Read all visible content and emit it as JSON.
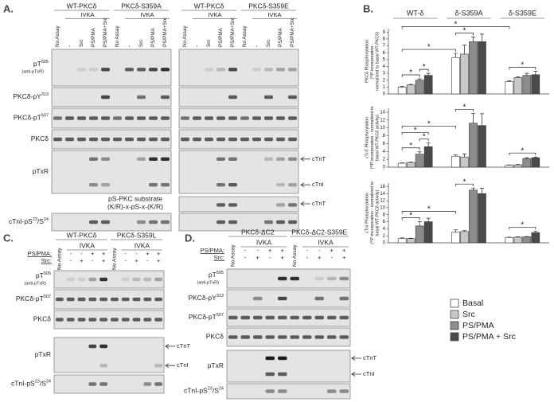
{
  "panel_a": {
    "label": "A.",
    "groups": [
      {
        "name": "WT-PKCδ",
        "assay": "IVKA"
      },
      {
        "name": "PKCδ-S359A",
        "assay": "IVKA"
      },
      {
        "name": "WT-PKCδ",
        "assay": "IVKA"
      },
      {
        "name": "PKCδ-S359E",
        "assay": "IVKA"
      }
    ],
    "lanes": [
      "No Assay",
      "-",
      "Src",
      "PS/PMA",
      "PS/PMA+Src"
    ],
    "rows": [
      {
        "label": [
          {
            "text": "pT"
          },
          {
            "sup": "505"
          }
        ],
        "note": "(anti-pTxR)"
      },
      {
        "label": [
          {
            "text": "PKCδ-pY"
          },
          {
            "sup": "313"
          }
        ]
      },
      {
        "label": [
          {
            "text": "PKCδ-pT"
          },
          {
            "sup": "507"
          }
        ]
      },
      {
        "label": [
          {
            "text": "PKCδ"
          }
        ]
      },
      {
        "label": [
          {
            "text": "pTxR"
          }
        ]
      },
      {
        "label": [
          {
            "text": "cTnI-pS"
          },
          {
            "sup": "23"
          },
          {
            "text": "/S"
          },
          {
            "sup": "24"
          }
        ]
      }
    ],
    "arrows": [
      "cTnT",
      "cTnI",
      "cTnT"
    ],
    "substrate_note": [
      "pS-PKC substrate",
      "(K/R)-x-pS-x-(K/R)"
    ]
  },
  "panel_c": {
    "label": "C.",
    "groups": [
      {
        "name": "WT-PKCδ",
        "assay": "IVKA"
      },
      {
        "name": "PKCδ-S359L",
        "assay": "IVKA"
      }
    ],
    "first_lane": "No Assay",
    "conditions": [
      {
        "name": "PS/PMA:",
        "signs": [
          "-",
          "-",
          "+",
          "+"
        ]
      },
      {
        "name": "Src:",
        "signs": [
          "-",
          "+",
          "-",
          "+"
        ]
      }
    ],
    "rows": [
      {
        "label": [
          {
            "text": "pT"
          },
          {
            "sup": "505"
          }
        ],
        "note": "(anti-pTxR)"
      },
      {
        "label": [
          {
            "text": "PKCδ-pT"
          },
          {
            "sup": "507"
          }
        ]
      },
      {
        "label": [
          {
            "text": "PKCδ"
          }
        ]
      },
      {
        "label": [
          {
            "text": "pTxR"
          }
        ]
      },
      {
        "label": [
          {
            "text": "cTnI-pS"
          },
          {
            "sup": "23"
          },
          {
            "text": "/S"
          },
          {
            "sup": "24"
          }
        ]
      }
    ],
    "arrows": [
      "cTnT",
      "cTnI"
    ]
  },
  "panel_d": {
    "label": "D.",
    "groups": [
      {
        "name": "PKCδ-ΔC2",
        "assay": "IVKA"
      },
      {
        "name": "PKCδ-ΔC2-S359E",
        "assay": "IVKA"
      }
    ],
    "first_lane": "No Assay",
    "conditions": [
      {
        "name": "PS/PMA:",
        "signs": [
          "-",
          "-",
          "+",
          "+"
        ]
      },
      {
        "name": "Src:",
        "signs": [
          "-",
          "+",
          "-",
          "+"
        ]
      }
    ],
    "rows": [
      {
        "label": [
          {
            "text": "pT"
          },
          {
            "sup": "505"
          }
        ],
        "note": "(anti-pTxR)"
      },
      {
        "label": [
          {
            "text": "PKCδ-pY"
          },
          {
            "sup": "313"
          }
        ]
      },
      {
        "label": [
          {
            "text": "PKCδ-pT"
          },
          {
            "sup": "507"
          }
        ]
      },
      {
        "label": [
          {
            "text": "PKCδ"
          }
        ]
      },
      {
        "label": [
          {
            "text": "pTxR"
          }
        ]
      },
      {
        "label": [
          {
            "text": "cTnI-pS"
          },
          {
            "sup": "23"
          },
          {
            "text": "/S"
          },
          {
            "sup": "24"
          }
        ]
      }
    ],
    "arrows": [
      "cTnT",
      "cTnI"
    ]
  },
  "panel_b": {
    "label": "B."
  },
  "chart_data": [
    {
      "type": "bar",
      "ylabel": [
        "PKCδ Phosphorylation",
        "(³²P-incorporation -",
        "normalized to basal WT-PKCδ)"
      ],
      "categories": [
        "WT-δ",
        "δ-S359A",
        "δ-S359E"
      ],
      "series": [
        {
          "name": "Basal",
          "color": "#ffffff",
          "values": [
            1.0,
            5.3,
            1.8
          ],
          "errors": [
            0.1,
            0.6,
            0.1
          ]
        },
        {
          "name": "Src",
          "color": "#c8c8c8",
          "values": [
            1.3,
            5.8,
            2.4
          ],
          "errors": [
            0.1,
            1.3,
            0.1
          ]
        },
        {
          "name": "PS/PMA",
          "color": "#8c8c8c",
          "values": [
            2.0,
            7.6,
            2.7
          ],
          "errors": [
            0.2,
            0.7,
            0.3
          ]
        },
        {
          "name": "PS/PMA + Src",
          "color": "#4a4a4a",
          "values": [
            2.7,
            7.6,
            2.8
          ],
          "errors": [
            0.3,
            1.1,
            0.5
          ]
        }
      ],
      "ylim": [
        0,
        9.5
      ],
      "yticks": [
        0,
        1,
        2,
        3,
        4,
        5,
        6,
        7,
        8,
        9
      ],
      "significance": [
        {
          "from": [
            0,
            0
          ],
          "to": [
            0,
            2
          ],
          "label": "*"
        },
        {
          "from": [
            0,
            2
          ],
          "to": [
            0,
            3
          ],
          "label": "*"
        },
        {
          "from": [
            0,
            0
          ],
          "to": [
            1,
            0
          ],
          "label": "*"
        },
        {
          "from": [
            1,
            0
          ],
          "to": [
            1,
            2
          ],
          "label": "*"
        },
        {
          "from": [
            2,
            0
          ],
          "to": [
            2,
            3
          ],
          "label": "*"
        },
        {
          "from": [
            0,
            0
          ],
          "to": [
            2,
            0
          ],
          "label": "*"
        }
      ]
    },
    {
      "type": "bar",
      "ylabel": [
        "cTnT Phosphorylation",
        "(³²P-incorporation - normalized to",
        "basal WT-PKCδ activity)"
      ],
      "categories": [
        null,
        null,
        null
      ],
      "series": [
        {
          "color": "#ffffff",
          "values": [
            1.0,
            2.8,
            0.5
          ],
          "errors": [
            0.1,
            0.3,
            0.1
          ]
        },
        {
          "color": "#c8c8c8",
          "values": [
            1.2,
            2.6,
            0.6
          ],
          "errors": [
            0.1,
            0.8,
            0.1
          ]
        },
        {
          "color": "#8c8c8c",
          "values": [
            3.3,
            11.2,
            2.2
          ],
          "errors": [
            0.6,
            2.5,
            0.2
          ]
        },
        {
          "color": "#4a4a4a",
          "values": [
            5.2,
            10.6,
            2.4
          ],
          "errors": [
            1.0,
            3.0,
            0.2
          ]
        }
      ],
      "ylim": [
        0,
        15
      ],
      "yticks": [
        0,
        2,
        4,
        6,
        8,
        10,
        12,
        14
      ],
      "significance": [
        {
          "from": [
            0,
            0
          ],
          "to": [
            0,
            2
          ],
          "label": "*"
        },
        {
          "from": [
            0,
            2
          ],
          "to": [
            0,
            3
          ],
          "label": "*"
        },
        {
          "from": [
            0,
            0
          ],
          "to": [
            0,
            3
          ],
          "label": "*"
        },
        {
          "from": [
            0,
            0
          ],
          "to": [
            1,
            0
          ],
          "label": "*"
        },
        {
          "from": [
            1,
            0
          ],
          "to": [
            1,
            2
          ],
          "label": "*"
        },
        {
          "from": [
            2,
            0
          ],
          "to": [
            2,
            3
          ],
          "label": "*"
        }
      ]
    },
    {
      "type": "bar",
      "ylabel": [
        "cTnI Phosphorylation",
        "(³²P-incorporation - normalized to",
        "basal WT-PKCδ activity)"
      ],
      "categories": [
        null,
        null,
        null
      ],
      "series": [
        {
          "color": "#ffffff",
          "values": [
            1.2,
            3.0,
            1.5
          ],
          "errors": [
            0.2,
            0.7,
            0.1
          ]
        },
        {
          "color": "#c8c8c8",
          "values": [
            1.2,
            3.2,
            1.6
          ],
          "errors": [
            0.1,
            0.3,
            0.1
          ]
        },
        {
          "color": "#8c8c8c",
          "values": [
            4.8,
            15.0,
            1.7
          ],
          "errors": [
            1.2,
            0.6,
            0.1
          ]
        },
        {
          "color": "#4a4a4a",
          "values": [
            6.0,
            14.0,
            2.9
          ],
          "errors": [
            1.0,
            1.5,
            0.4
          ]
        }
      ],
      "ylim": [
        0,
        17
      ],
      "yticks": [
        0,
        2,
        4,
        6,
        8,
        10,
        12,
        14,
        16
      ],
      "significance": [
        {
          "from": [
            0,
            0
          ],
          "to": [
            0,
            2
          ],
          "label": "*"
        },
        {
          "from": [
            0,
            0
          ],
          "to": [
            1,
            0
          ],
          "label": "*"
        },
        {
          "from": [
            1,
            0
          ],
          "to": [
            1,
            2
          ],
          "label": "*"
        },
        {
          "from": [
            2,
            0
          ],
          "to": [
            2,
            3
          ],
          "label": "*"
        }
      ]
    }
  ]
}
